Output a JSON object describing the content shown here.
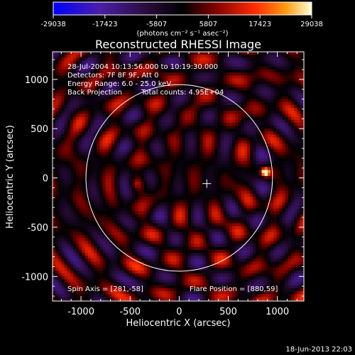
{
  "chart_data": {
    "type": "heatmap",
    "title": "Reconstructed RHESSI Image",
    "xlabel": "Heliocentric X (arcsec)",
    "ylabel": "Heliocentric Y (arcsec)",
    "xlim": [
      -1290,
      1270
    ],
    "ylim": [
      -1250,
      1280
    ],
    "xticks": [
      "-1000",
      "-500",
      "0",
      "500",
      "1000"
    ],
    "xtick_values": [
      -1000,
      -500,
      0,
      500,
      1000
    ],
    "yticks": [
      "-1000",
      "-500",
      "0",
      "500",
      "1000"
    ],
    "ytick_values": [
      -1000,
      -500,
      0,
      500,
      1000
    ],
    "colorbar": {
      "min": -29038,
      "max": 29038,
      "tick_labels": [
        "-29038",
        "-17423",
        "-5807",
        "5807",
        "17423",
        "29038"
      ],
      "tick_values": [
        -29038,
        -17423,
        -5807,
        5807,
        17423,
        29038
      ],
      "units_label": "(photons cm⁻² s⁻¹ asec⁻²)",
      "colors": [
        "#0000ff",
        "#4b1fa8",
        "#2a0c3c",
        "#000000",
        "#7a0000",
        "#ff2a00",
        "#ff9a10",
        "#ffffd8"
      ]
    },
    "annotations": {
      "time_range": "28-Jul-2004 10:13:56.000 to 10:19:30.000",
      "detectors": "Detectors: 7F 8F 9F, Att 0",
      "energy_range": "Energy Range: 6.0 - 25.0 keV",
      "method": "Back Projection",
      "total_counts": "Total counts: 4.95E+04",
      "spin_axis": "Spin Axis = [281,-58]",
      "flare_position": "Flare Position = [880,59]"
    },
    "solar_disk": {
      "center": [
        0,
        0
      ],
      "radius_arcsec": 950,
      "color": "#ffffff"
    },
    "spin_axis_marker": [
      281,
      -58
    ],
    "flare_source": {
      "center": [
        880,
        59
      ],
      "peak_value": 29038
    },
    "grid": false,
    "timestamp": "18-Jun-2013 22:03"
  }
}
